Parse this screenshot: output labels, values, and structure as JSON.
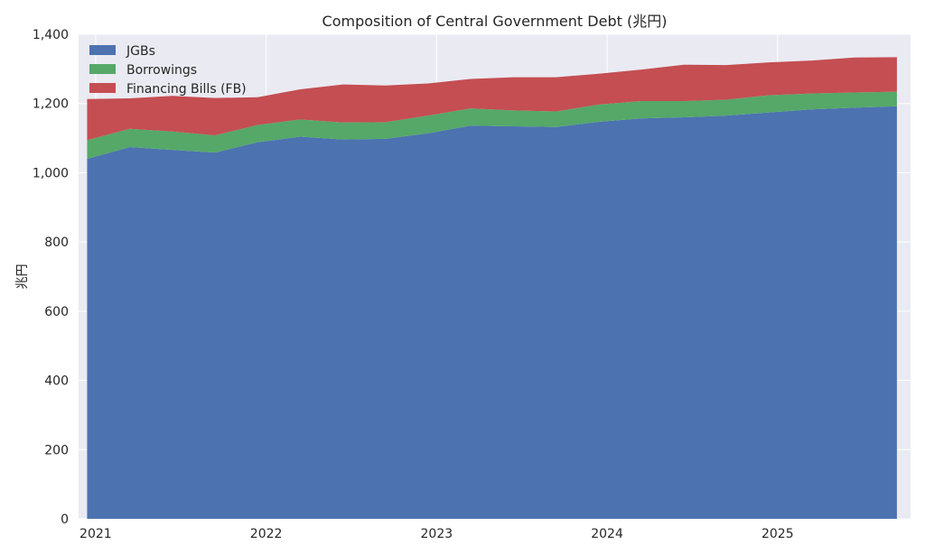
{
  "chart_data": {
    "type": "area",
    "stacked": true,
    "title": "Composition of Central Government Debt (兆円)",
    "xlabel": "",
    "ylabel": "兆円",
    "ylim": [
      0,
      1400
    ],
    "yticks": [
      0,
      200,
      400,
      600,
      800,
      1000,
      1200,
      1400
    ],
    "ytick_labels": [
      "0",
      "200",
      "400",
      "600",
      "800",
      "1,000",
      "1,200",
      "1,400"
    ],
    "xlim": [
      2020.9,
      2025.78
    ],
    "xticks": [
      2021,
      2022,
      2023,
      2024,
      2025
    ],
    "xtick_labels": [
      "2021",
      "2022",
      "2023",
      "2024",
      "2025"
    ],
    "grid": true,
    "legend_position": "top-left",
    "x": [
      2020.95,
      2021.2,
      2021.45,
      2021.7,
      2021.95,
      2022.2,
      2022.45,
      2022.7,
      2022.95,
      2023.2,
      2023.45,
      2023.7,
      2023.95,
      2024.2,
      2024.45,
      2024.7,
      2024.95,
      2025.2,
      2025.45,
      2025.7
    ],
    "series": [
      {
        "name": "JGBs",
        "color": "#4c72b0",
        "values": [
          1040,
          1074,
          1066,
          1058,
          1088,
          1104,
          1096,
          1098,
          1114,
          1136,
          1134,
          1132,
          1147,
          1157,
          1160,
          1165,
          1174,
          1183,
          1188,
          1192
        ]
      },
      {
        "name": "Borrowings",
        "color": "#55a868",
        "values": [
          54,
          53,
          53,
          50,
          50,
          50,
          49,
          48,
          51,
          50,
          46,
          45,
          50,
          50,
          47,
          46,
          50,
          46,
          44,
          42
        ]
      },
      {
        "name": "Financing Bills (FB)",
        "color": "#c44e52",
        "values": [
          119,
          88,
          103,
          108,
          80,
          87,
          110,
          106,
          93,
          85,
          96,
          99,
          89,
          91,
          105,
          100,
          95,
          95,
          101,
          100
        ]
      }
    ]
  }
}
